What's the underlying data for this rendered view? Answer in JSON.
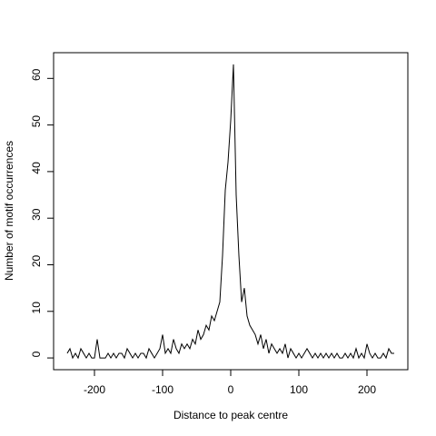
{
  "chart_data": {
    "type": "line",
    "xlabel": "Distance to peak centre",
    "ylabel": "Number of motif occurrences",
    "x": [
      -240,
      -236,
      -232,
      -228,
      -224,
      -220,
      -216,
      -212,
      -208,
      -204,
      -200,
      -196,
      -192,
      -188,
      -184,
      -180,
      -176,
      -172,
      -168,
      -164,
      -160,
      -156,
      -152,
      -148,
      -144,
      -140,
      -136,
      -132,
      -128,
      -124,
      -120,
      -116,
      -112,
      -108,
      -104,
      -100,
      -96,
      -92,
      -88,
      -84,
      -80,
      -76,
      -72,
      -68,
      -64,
      -60,
      -56,
      -52,
      -48,
      -44,
      -40,
      -36,
      -32,
      -28,
      -24,
      -20,
      -16,
      -12,
      -8,
      -4,
      0,
      4,
      8,
      12,
      16,
      20,
      24,
      28,
      32,
      36,
      40,
      44,
      48,
      52,
      56,
      60,
      64,
      68,
      72,
      76,
      80,
      84,
      88,
      92,
      96,
      100,
      104,
      108,
      112,
      116,
      120,
      124,
      128,
      132,
      136,
      140,
      144,
      148,
      152,
      156,
      160,
      164,
      168,
      172,
      176,
      180,
      184,
      188,
      192,
      196,
      200,
      204,
      208,
      212,
      216,
      220,
      224,
      228,
      232,
      236,
      240
    ],
    "y": [
      1,
      2,
      0,
      1,
      0,
      2,
      1,
      0,
      1,
      0,
      0,
      4,
      0,
      0,
      0,
      1,
      0,
      1,
      0,
      1,
      1,
      0,
      2,
      1,
      0,
      1,
      0,
      1,
      1,
      0,
      2,
      1,
      0,
      1,
      2,
      5,
      1,
      2,
      1,
      4,
      2,
      1,
      3,
      2,
      3,
      2,
      4,
      3,
      6,
      4,
      5,
      7,
      6,
      9,
      8,
      10,
      12,
      22,
      36,
      42,
      51,
      63,
      35,
      22,
      12,
      15,
      9,
      7,
      6,
      5,
      3,
      5,
      2,
      4,
      1,
      3,
      2,
      1,
      2,
      1,
      3,
      0,
      2,
      1,
      0,
      1,
      0,
      1,
      2,
      1,
      0,
      1,
      0,
      1,
      0,
      1,
      0,
      1,
      0,
      1,
      0,
      0,
      1,
      0,
      1,
      0,
      2,
      0,
      1,
      0,
      3,
      1,
      0,
      1,
      0,
      0,
      1,
      0,
      2,
      1,
      1
    ],
    "color": "#000000",
    "xlim": [
      -260,
      260
    ],
    "ylim": [
      -2.52,
      65.52
    ],
    "xticks": [
      -200,
      -100,
      0,
      100,
      200
    ],
    "yticks": [
      0,
      10,
      20,
      30,
      40,
      50,
      60
    ]
  }
}
